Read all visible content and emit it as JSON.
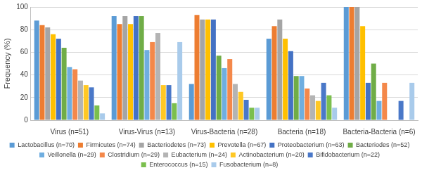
{
  "chart_data": {
    "type": "bar",
    "y_label": "Frequency (%)",
    "categories": [
      "Virus (n=51)",
      "Virus-Virus (n=13)",
      "Virus-Bacteria (n=28)",
      "Bacteria (n=18)",
      "Bacteria-Bacteria (n=6)"
    ],
    "series": [
      {
        "name": "Lactobacillus (n=70)",
        "color": "#5B9BD5",
        "values": [
          88,
          92,
          32,
          72,
          100
        ]
      },
      {
        "name": "Firmicutes (n=74)",
        "color": "#ED7D31",
        "values": [
          84,
          85,
          93,
          83,
          100
        ]
      },
      {
        "name": "Bacteriodetes (n=73)",
        "color": "#A5A5A5",
        "values": [
          82,
          92,
          89,
          89,
          100
        ]
      },
      {
        "name": "Prevotella (n=67)",
        "color": "#FFC000",
        "values": [
          76,
          85,
          89,
          72,
          83
        ]
      },
      {
        "name": "Proteobacterium (n=63)",
        "color": "#4472C4",
        "values": [
          72,
          92,
          89,
          61,
          33
        ]
      },
      {
        "name": "Bacteriodes (n=52)",
        "color": "#70AD47",
        "values": [
          64,
          92,
          57,
          39,
          50
        ]
      },
      {
        "name": "Veillonella (n=29)",
        "color": "#6FAEE0",
        "values": [
          47,
          62,
          46,
          39,
          17
        ]
      },
      {
        "name": "Clostridium (n=29)",
        "color": "#F4884A",
        "values": [
          45,
          69,
          54,
          28,
          33
        ]
      },
      {
        "name": "Eubacterium (n=24)",
        "color": "#B4B4B4",
        "values": [
          35,
          77,
          32,
          22,
          0
        ]
      },
      {
        "name": "Actinobacterium (n=20)",
        "color": "#FFC824",
        "values": [
          31,
          31,
          25,
          17,
          0
        ]
      },
      {
        "name": "Bifidobacterium (n=22)",
        "color": "#4A78C8",
        "values": [
          29,
          31,
          18,
          33,
          17
        ]
      },
      {
        "name": "Enterococcus (n=15)",
        "color": "#7BBF4E",
        "values": [
          13,
          15,
          11,
          22,
          0
        ]
      },
      {
        "name": "Fusobacterium (n=8)",
        "color": "#A9CBEB",
        "values": [
          6,
          69,
          11,
          11,
          33
        ]
      }
    ],
    "ylim": [
      0,
      100
    ],
    "yticks": [
      0,
      20,
      40,
      60,
      80,
      100
    ],
    "grid": true,
    "legend": "bottom"
  }
}
